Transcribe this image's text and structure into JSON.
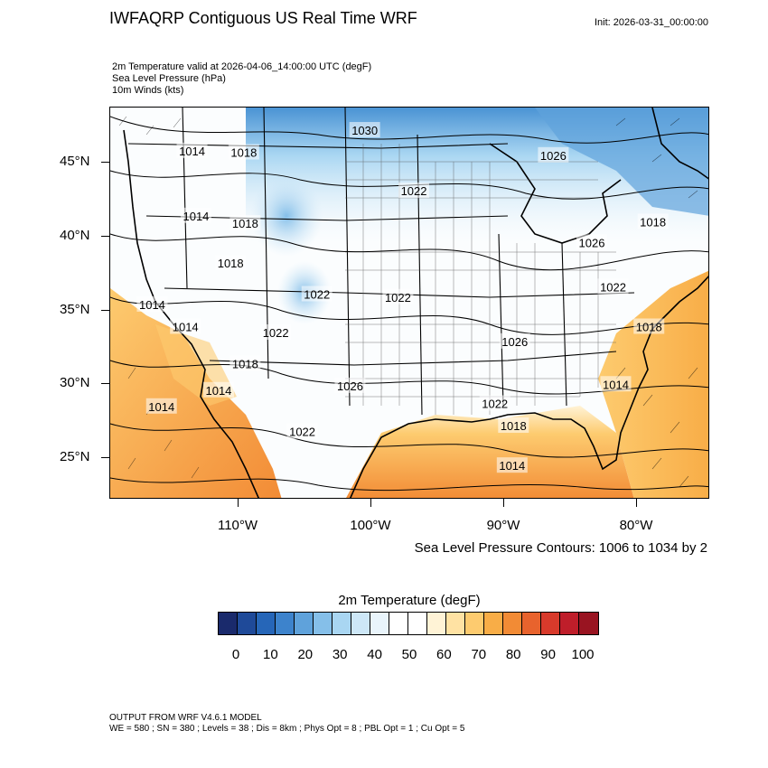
{
  "header": {
    "title": "IWFAQRP Contiguous US Real Time WRF",
    "init": "Init: 2026-03-31_00:00:00",
    "fields": [
      "2m Temperature valid at 2026-04-06_14:00:00 UTC   (degF)",
      "Sea Level Pressure   (hPa)",
      "10m Winds   (kts)"
    ]
  },
  "map": {
    "lat_ticks": [
      {
        "label": "45°N",
        "lat": 45
      },
      {
        "label": "40°N",
        "lat": 40
      },
      {
        "label": "35°N",
        "lat": 35
      },
      {
        "label": "30°N",
        "lat": 30
      },
      {
        "label": "25°N",
        "lat": 25
      }
    ],
    "lon_ticks": [
      {
        "label": "110°W",
        "lon": -110
      },
      {
        "label": "100°W",
        "lon": -100
      },
      {
        "label": "90°W",
        "lon": -90
      },
      {
        "label": "80°W",
        "lon": -80
      }
    ],
    "pressure_labels": [
      {
        "text": "1030",
        "lon": -100.5,
        "lat": 47.2
      },
      {
        "text": "1014",
        "lon": -113.5,
        "lat": 45.8
      },
      {
        "text": "1018",
        "lon": -109.6,
        "lat": 45.7
      },
      {
        "text": "1026",
        "lon": -86.3,
        "lat": 45.5
      },
      {
        "text": "1022",
        "lon": -96.8,
        "lat": 43.1
      },
      {
        "text": "1014",
        "lon": -113.2,
        "lat": 41.4
      },
      {
        "text": "1018",
        "lon": -109.5,
        "lat": 40.9
      },
      {
        "text": "1018",
        "lon": -78.8,
        "lat": 41.0
      },
      {
        "text": "1026",
        "lon": -83.4,
        "lat": 39.6
      },
      {
        "text": "1018",
        "lon": -110.6,
        "lat": 38.2
      },
      {
        "text": "1022",
        "lon": -104.1,
        "lat": 36.1
      },
      {
        "text": "1022",
        "lon": -98.0,
        "lat": 35.9
      },
      {
        "text": "1022",
        "lon": -81.8,
        "lat": 36.6
      },
      {
        "text": "1014",
        "lon": -116.5,
        "lat": 35.4
      },
      {
        "text": "1014",
        "lon": -114.0,
        "lat": 33.9
      },
      {
        "text": "1022",
        "lon": -107.2,
        "lat": 33.5
      },
      {
        "text": "1026",
        "lon": -89.2,
        "lat": 32.9
      },
      {
        "text": "1018",
        "lon": -79.1,
        "lat": 33.9
      },
      {
        "text": "1018",
        "lon": -109.5,
        "lat": 31.4
      },
      {
        "text": "1014",
        "lon": -111.5,
        "lat": 29.6
      },
      {
        "text": "1026",
        "lon": -101.6,
        "lat": 29.9
      },
      {
        "text": "1014",
        "lon": -81.6,
        "lat": 30.0
      },
      {
        "text": "1014",
        "lon": -115.8,
        "lat": 28.5
      },
      {
        "text": "1022",
        "lon": -90.7,
        "lat": 28.7
      },
      {
        "text": "1018",
        "lon": -89.3,
        "lat": 27.2
      },
      {
        "text": "1022",
        "lon": -105.2,
        "lat": 26.8
      },
      {
        "text": "1014",
        "lon": -89.4,
        "lat": 24.5
      }
    ]
  },
  "contour_note": "Sea Level Pressure Contours: 1006 to 1034 by 2",
  "colorbar": {
    "title": "2m Temperature  (degF)",
    "colors": [
      "#1a2a6c",
      "#1f4a99",
      "#2666b8",
      "#3d83cc",
      "#5fa2db",
      "#85bfe9",
      "#a9d6f2",
      "#cde7f7",
      "#e9f4fb",
      "#ffffff",
      "#ffffff",
      "#fff3d6",
      "#ffe2a3",
      "#fdcb6f",
      "#f8ad47",
      "#f28b35",
      "#e8632d",
      "#d83a2b",
      "#bf1e2a",
      "#991421"
    ],
    "labels": [
      "0",
      "10",
      "20",
      "30",
      "40",
      "50",
      "60",
      "70",
      "80",
      "90",
      "100"
    ]
  },
  "footer": {
    "line1": "OUTPUT FROM WRF V4.6.1 MODEL",
    "line2": "WE = 580 ; SN = 380 ; Levels = 38 ; Dis = 8km ; Phys Opt = 8 ; PBL Opt = 1 ; Cu Opt = 5"
  }
}
